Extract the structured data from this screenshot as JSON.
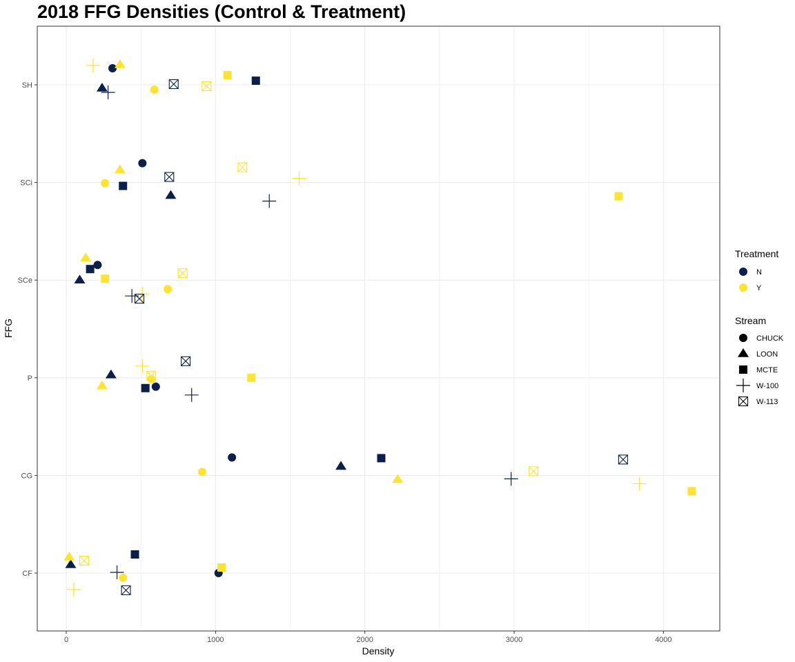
{
  "chart_data": {
    "type": "scatter",
    "title": "2018 FFG Densities (Control & Treatment)",
    "xlabel": "Density",
    "ylabel": "FFG",
    "xlim": [
      -180,
      4380
    ],
    "x_ticks": [
      0,
      1000,
      2000,
      3000,
      4000
    ],
    "y_categories": [
      "CF",
      "CG",
      "P",
      "SCe",
      "SCi",
      "SH"
    ],
    "grid": true,
    "legend_placement": "right",
    "treatment_legend": {
      "title": "Treatment",
      "items": [
        {
          "label": "N",
          "color": "#0b1f4a"
        },
        {
          "label": "Y",
          "color": "#fde333"
        }
      ]
    },
    "stream_legend": {
      "title": "Stream",
      "items": [
        {
          "label": "CHUCK",
          "shape": "circle"
        },
        {
          "label": "LOON",
          "shape": "triangle"
        },
        {
          "label": "MCTE",
          "shape": "square"
        },
        {
          "label": "W-100",
          "shape": "plus"
        },
        {
          "label": "W-113",
          "shape": "boxed-x"
        }
      ]
    },
    "points": [
      {
        "ffg": "SH",
        "stream": "CHUCK",
        "treatment": "N",
        "x": 310
      },
      {
        "ffg": "SH",
        "stream": "CHUCK",
        "treatment": "Y",
        "x": 590
      },
      {
        "ffg": "SH",
        "stream": "LOON",
        "treatment": "N",
        "x": 240
      },
      {
        "ffg": "SH",
        "stream": "LOON",
        "treatment": "Y",
        "x": 360
      },
      {
        "ffg": "SH",
        "stream": "MCTE",
        "treatment": "N",
        "x": 1270
      },
      {
        "ffg": "SH",
        "stream": "MCTE",
        "treatment": "Y",
        "x": 1080
      },
      {
        "ffg": "SH",
        "stream": "W-100",
        "treatment": "N",
        "x": 280
      },
      {
        "ffg": "SH",
        "stream": "W-100",
        "treatment": "Y",
        "x": 180
      },
      {
        "ffg": "SH",
        "stream": "W-113",
        "treatment": "N",
        "x": 720
      },
      {
        "ffg": "SH",
        "stream": "W-113",
        "treatment": "Y",
        "x": 940
      },
      {
        "ffg": "SCi",
        "stream": "CHUCK",
        "treatment": "N",
        "x": 510
      },
      {
        "ffg": "SCi",
        "stream": "CHUCK",
        "treatment": "Y",
        "x": 260
      },
      {
        "ffg": "SCi",
        "stream": "LOON",
        "treatment": "N",
        "x": 700
      },
      {
        "ffg": "SCi",
        "stream": "LOON",
        "treatment": "Y",
        "x": 360
      },
      {
        "ffg": "SCi",
        "stream": "MCTE",
        "treatment": "N",
        "x": 380
      },
      {
        "ffg": "SCi",
        "stream": "MCTE",
        "treatment": "Y",
        "x": 3700
      },
      {
        "ffg": "SCi",
        "stream": "W-100",
        "treatment": "N",
        "x": 1360
      },
      {
        "ffg": "SCi",
        "stream": "W-100",
        "treatment": "Y",
        "x": 1560
      },
      {
        "ffg": "SCi",
        "stream": "W-113",
        "treatment": "N",
        "x": 690
      },
      {
        "ffg": "SCi",
        "stream": "W-113",
        "treatment": "Y",
        "x": 1180
      },
      {
        "ffg": "SCe",
        "stream": "CHUCK",
        "treatment": "N",
        "x": 210
      },
      {
        "ffg": "SCe",
        "stream": "CHUCK",
        "treatment": "Y",
        "x": 680
      },
      {
        "ffg": "SCe",
        "stream": "LOON",
        "treatment": "N",
        "x": 90
      },
      {
        "ffg": "SCe",
        "stream": "LOON",
        "treatment": "Y",
        "x": 130
      },
      {
        "ffg": "SCe",
        "stream": "MCTE",
        "treatment": "N",
        "x": 160
      },
      {
        "ffg": "SCe",
        "stream": "MCTE",
        "treatment": "Y",
        "x": 260
      },
      {
        "ffg": "SCe",
        "stream": "W-100",
        "treatment": "N",
        "x": 440
      },
      {
        "ffg": "SCe",
        "stream": "W-100",
        "treatment": "Y",
        "x": 510
      },
      {
        "ffg": "SCe",
        "stream": "W-113",
        "treatment": "N",
        "x": 490
      },
      {
        "ffg": "SCe",
        "stream": "W-113",
        "treatment": "Y",
        "x": 780
      },
      {
        "ffg": "P",
        "stream": "CHUCK",
        "treatment": "N",
        "x": 600
      },
      {
        "ffg": "P",
        "stream": "CHUCK",
        "treatment": "Y",
        "x": 570
      },
      {
        "ffg": "P",
        "stream": "LOON",
        "treatment": "N",
        "x": 300
      },
      {
        "ffg": "P",
        "stream": "LOON",
        "treatment": "Y",
        "x": 240
      },
      {
        "ffg": "P",
        "stream": "MCTE",
        "treatment": "N",
        "x": 530
      },
      {
        "ffg": "P",
        "stream": "MCTE",
        "treatment": "Y",
        "x": 1240
      },
      {
        "ffg": "P",
        "stream": "W-100",
        "treatment": "N",
        "x": 840
      },
      {
        "ffg": "P",
        "stream": "W-100",
        "treatment": "Y",
        "x": 510
      },
      {
        "ffg": "P",
        "stream": "W-113",
        "treatment": "N",
        "x": 800
      },
      {
        "ffg": "P",
        "stream": "W-113",
        "treatment": "Y",
        "x": 570
      },
      {
        "ffg": "CG",
        "stream": "CHUCK",
        "treatment": "N",
        "x": 1110
      },
      {
        "ffg": "CG",
        "stream": "CHUCK",
        "treatment": "Y",
        "x": 910
      },
      {
        "ffg": "CG",
        "stream": "LOON",
        "treatment": "N",
        "x": 1840
      },
      {
        "ffg": "CG",
        "stream": "LOON",
        "treatment": "Y",
        "x": 2220
      },
      {
        "ffg": "CG",
        "stream": "MCTE",
        "treatment": "N",
        "x": 2110
      },
      {
        "ffg": "CG",
        "stream": "MCTE",
        "treatment": "Y",
        "x": 4190
      },
      {
        "ffg": "CG",
        "stream": "W-100",
        "treatment": "N",
        "x": 2980
      },
      {
        "ffg": "CG",
        "stream": "W-100",
        "treatment": "Y",
        "x": 3840
      },
      {
        "ffg": "CG",
        "stream": "W-113",
        "treatment": "N",
        "x": 3730
      },
      {
        "ffg": "CG",
        "stream": "W-113",
        "treatment": "Y",
        "x": 3130
      },
      {
        "ffg": "CF",
        "stream": "CHUCK",
        "treatment": "N",
        "x": 1020
      },
      {
        "ffg": "CF",
        "stream": "CHUCK",
        "treatment": "Y",
        "x": 380
      },
      {
        "ffg": "CF",
        "stream": "LOON",
        "treatment": "N",
        "x": 30
      },
      {
        "ffg": "CF",
        "stream": "LOON",
        "treatment": "Y",
        "x": 20
      },
      {
        "ffg": "CF",
        "stream": "MCTE",
        "treatment": "N",
        "x": 460
      },
      {
        "ffg": "CF",
        "stream": "MCTE",
        "treatment": "Y",
        "x": 1040
      },
      {
        "ffg": "CF",
        "stream": "W-100",
        "treatment": "N",
        "x": 340
      },
      {
        "ffg": "CF",
        "stream": "W-100",
        "treatment": "Y",
        "x": 50
      },
      {
        "ffg": "CF",
        "stream": "W-113",
        "treatment": "N",
        "x": 400
      },
      {
        "ffg": "CF",
        "stream": "W-113",
        "treatment": "Y",
        "x": 120
      }
    ]
  }
}
